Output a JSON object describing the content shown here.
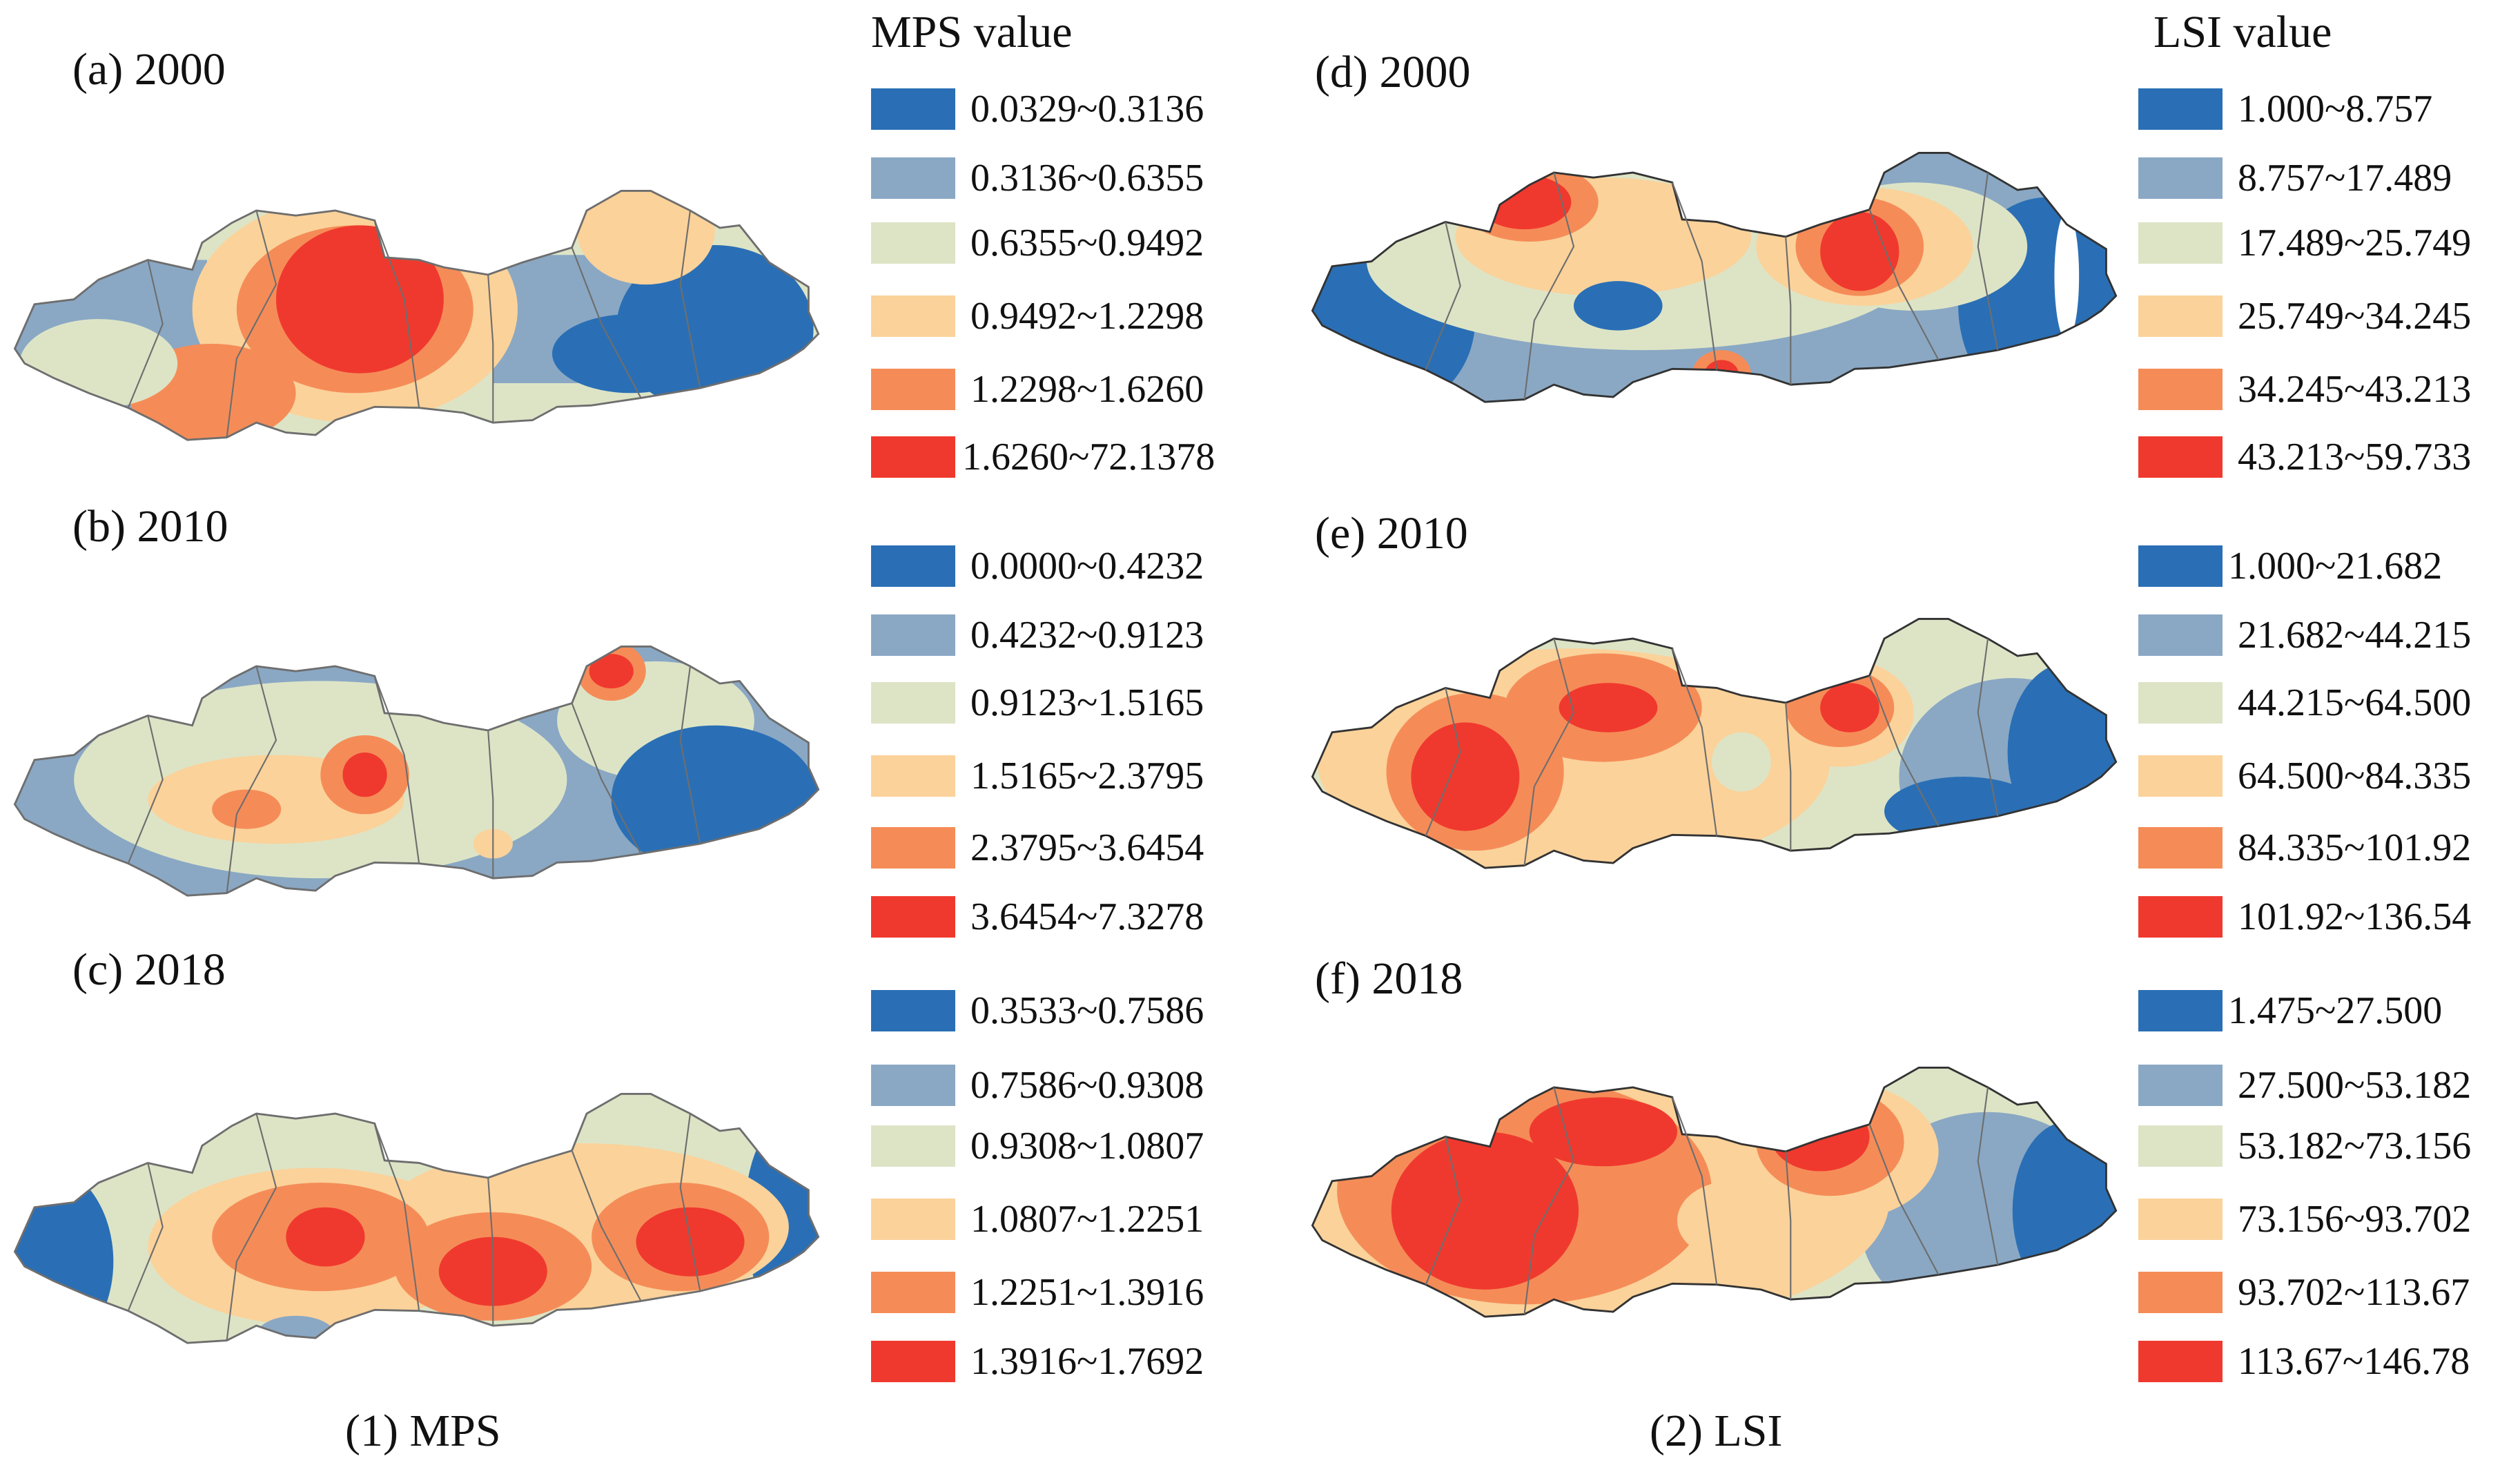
{
  "colors": {
    "c1": "#2a6fb5",
    "c2": "#8aa8c4",
    "c3": "#dde4c6",
    "c4": "#fbd29a",
    "c5": "#f58c58",
    "c6": "#f0392e",
    "boundary": "#6e6e6e"
  },
  "mps": {
    "legend_title": "MPS value",
    "caption": "(1) MPS",
    "panels": [
      {
        "label": "(a) 2000",
        "classes": [
          "0.0329~0.3136",
          "0.3136~0.6355",
          "0.6355~0.9492",
          "0.9492~1.2298",
          "1.2298~1.6260",
          "1.6260~72.1378"
        ]
      },
      {
        "label": "(b) 2010",
        "classes": [
          "0.0000~0.4232",
          "0.4232~0.9123",
          "0.9123~1.5165",
          "1.5165~2.3795",
          "2.3795~3.6454",
          "3.6454~7.3278"
        ]
      },
      {
        "label": "(c) 2018",
        "classes": [
          "0.3533~0.7586",
          "0.7586~0.9308",
          "0.9308~1.0807",
          "1.0807~1.2251",
          "1.2251~1.3916",
          "1.3916~1.7692"
        ]
      }
    ]
  },
  "lsi": {
    "legend_title": "LSI value",
    "caption": "(2) LSI",
    "panels": [
      {
        "label": "(d) 2000",
        "classes": [
          "1.000~8.757",
          "8.757~17.489",
          "17.489~25.749",
          "25.749~34.245",
          "34.245~43.213",
          "43.213~59.733"
        ]
      },
      {
        "label": "(e) 2010",
        "classes": [
          "1.000~21.682",
          "21.682~44.215",
          "44.215~64.500",
          "64.500~84.335",
          "84.335~101.92",
          "101.92~136.54"
        ]
      },
      {
        "label": "(f) 2018",
        "classes": [
          "1.475~27.500",
          "27.500~53.182",
          "53.182~73.156",
          "73.156~93.702",
          "93.702~113.67",
          "113.67~146.78"
        ]
      }
    ]
  }
}
